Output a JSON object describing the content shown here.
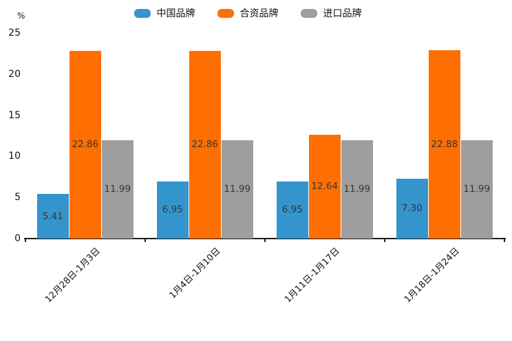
{
  "chart_data": {
    "type": "bar",
    "title": "",
    "xlabel": "",
    "ylabel": "%",
    "categories": [
      "12月28日-1月3日",
      "1月4日-1月10日",
      "1月11日-1月17日",
      "1月18日-1月24日"
    ],
    "series": [
      {
        "name": "中国品牌",
        "color": "#3494CC",
        "values": [
          5.41,
          6.95,
          6.95,
          7.3
        ]
      },
      {
        "name": "合资品牌",
        "color": "#FF6E00",
        "values": [
          22.86,
          22.86,
          12.64,
          22.88
        ]
      },
      {
        "name": "进口品牌",
        "color": "#9E9E9E",
        "values": [
          11.99,
          11.99,
          11.99,
          11.99
        ]
      }
    ],
    "ylim": [
      0,
      25
    ],
    "yticks": [
      0,
      5,
      10,
      15,
      20,
      25
    ],
    "grid": false,
    "legend_position": "top",
    "bar_label_decimals": 2,
    "bar_label_position": "center",
    "xtick_rotation": 45
  }
}
